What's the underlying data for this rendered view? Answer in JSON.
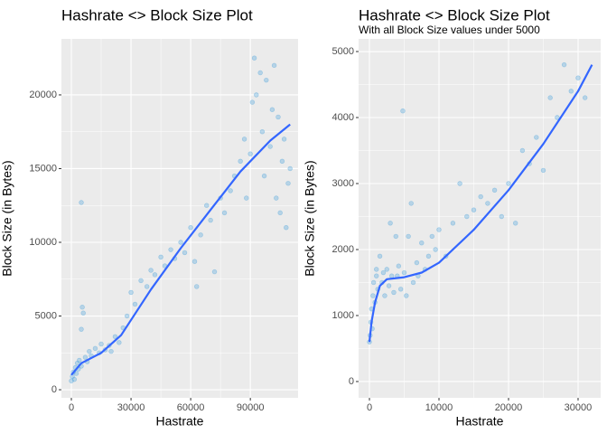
{
  "chart_data": [
    {
      "type": "scatter",
      "title": "Hashrate <> Block Size Plot",
      "x_label": "Hastrate",
      "y_label": "Block Size (in Bytes)",
      "xlim": [
        -5000,
        114000
      ],
      "ylim": [
        -550,
        23800
      ],
      "xticks": [
        0,
        30000,
        60000,
        90000
      ],
      "yticks": [
        0,
        5000,
        10000,
        15000,
        20000
      ],
      "grid": true,
      "color": "#3a9ad9",
      "points": [
        [
          0,
          600
        ],
        [
          500,
          900
        ],
        [
          1000,
          1200
        ],
        [
          1500,
          700
        ],
        [
          2000,
          1500
        ],
        [
          2500,
          1100
        ],
        [
          3000,
          1800
        ],
        [
          3500,
          1400
        ],
        [
          4000,
          2000
        ],
        [
          5000,
          1600
        ],
        [
          5000,
          12700
        ],
        [
          5500,
          5600
        ],
        [
          6000,
          5200
        ],
        [
          5000,
          4100
        ],
        [
          7000,
          2200
        ],
        [
          8000,
          1900
        ],
        [
          9000,
          2600
        ],
        [
          10000,
          2300
        ],
        [
          12000,
          2800
        ],
        [
          14000,
          2500
        ],
        [
          15000,
          3100
        ],
        [
          17000,
          2700
        ],
        [
          19000,
          3000
        ],
        [
          20000,
          2600
        ],
        [
          22000,
          3600
        ],
        [
          24000,
          3200
        ],
        [
          26000,
          4200
        ],
        [
          28000,
          5000
        ],
        [
          30000,
          6600
        ],
        [
          32000,
          5800
        ],
        [
          35000,
          7400
        ],
        [
          38000,
          7000
        ],
        [
          40000,
          8100
        ],
        [
          42000,
          7800
        ],
        [
          45000,
          9000
        ],
        [
          47000,
          8400
        ],
        [
          50000,
          9500
        ],
        [
          52000,
          8900
        ],
        [
          55000,
          10000
        ],
        [
          57000,
          9300
        ],
        [
          60000,
          11000
        ],
        [
          62000,
          8700
        ],
        [
          63000,
          7000
        ],
        [
          65000,
          10500
        ],
        [
          68000,
          12500
        ],
        [
          70000,
          11500
        ],
        [
          72000,
          8000
        ],
        [
          75000,
          13000
        ],
        [
          77000,
          12000
        ],
        [
          80000,
          13500
        ],
        [
          82000,
          14500
        ],
        [
          85000,
          15500
        ],
        [
          87000,
          17000
        ],
        [
          88000,
          13000
        ],
        [
          90000,
          16000
        ],
        [
          91000,
          19500
        ],
        [
          92000,
          22500
        ],
        [
          93000,
          20000
        ],
        [
          95000,
          21500
        ],
        [
          96000,
          17500
        ],
        [
          97000,
          14500
        ],
        [
          98000,
          21000
        ],
        [
          100000,
          16500
        ],
        [
          101000,
          19000
        ],
        [
          102000,
          22000
        ],
        [
          103000,
          13000
        ],
        [
          104000,
          18500
        ],
        [
          105000,
          12000
        ],
        [
          106000,
          15500
        ],
        [
          107000,
          17000
        ],
        [
          108000,
          11000
        ],
        [
          109000,
          14000
        ],
        [
          110000,
          15000
        ]
      ],
      "fit": {
        "color": "#3366ff",
        "x": [
          0,
          5000,
          15000,
          25000,
          40000,
          55000,
          70000,
          85000,
          100000,
          110000
        ],
        "y": [
          1000,
          1800,
          2500,
          3700,
          6800,
          9600,
          12200,
          14800,
          16900,
          18000
        ]
      }
    },
    {
      "type": "scatter",
      "title": "Hashrate <> Block Size Plot",
      "subtitle": "With all Block Size values under 5000",
      "x_label": "Hastrate",
      "y_label": "Block Size (in Bytes)",
      "xlim": [
        -1560,
        33250
      ],
      "ylim": [
        -247,
        5192
      ],
      "xticks": [
        0,
        10000,
        20000,
        30000
      ],
      "yticks": [
        0,
        1000,
        2000,
        3000,
        4000,
        5000
      ],
      "grid": true,
      "color": "#3a9ad9",
      "points": [
        [
          0,
          600
        ],
        [
          100,
          700
        ],
        [
          200,
          900
        ],
        [
          300,
          1100
        ],
        [
          400,
          800
        ],
        [
          500,
          1300
        ],
        [
          600,
          1500
        ],
        [
          800,
          1200
        ],
        [
          1000,
          1700
        ],
        [
          1000,
          1600
        ],
        [
          1200,
          1400
        ],
        [
          1500,
          1900
        ],
        [
          1800,
          1500
        ],
        [
          2000,
          1650
        ],
        [
          2200,
          1300
        ],
        [
          2500,
          1700
        ],
        [
          2800,
          1450
        ],
        [
          3000,
          2400
        ],
        [
          3200,
          1600
        ],
        [
          3500,
          1350
        ],
        [
          3800,
          2200
        ],
        [
          4000,
          1600
        ],
        [
          4200,
          1750
        ],
        [
          4500,
          1400
        ],
        [
          4800,
          4100
        ],
        [
          5000,
          1650
        ],
        [
          5300,
          1300
        ],
        [
          5600,
          2200
        ],
        [
          6000,
          2700
        ],
        [
          6300,
          1500
        ],
        [
          6800,
          1800
        ],
        [
          7000,
          1600
        ],
        [
          7500,
          2100
        ],
        [
          8000,
          1700
        ],
        [
          8500,
          1900
        ],
        [
          9000,
          2200
        ],
        [
          9500,
          2000
        ],
        [
          10000,
          2300
        ],
        [
          11000,
          1900
        ],
        [
          12000,
          2400
        ],
        [
          13000,
          3000
        ],
        [
          14000,
          2500
        ],
        [
          15000,
          2600
        ],
        [
          16000,
          2800
        ],
        [
          17000,
          2700
        ],
        [
          18000,
          2900
        ],
        [
          19000,
          2500
        ],
        [
          20000,
          3000
        ],
        [
          21000,
          2400
        ],
        [
          22000,
          3500
        ],
        [
          23000,
          3300
        ],
        [
          24000,
          3700
        ],
        [
          25000,
          3200
        ],
        [
          26000,
          4300
        ],
        [
          27000,
          4000
        ],
        [
          28000,
          4800
        ],
        [
          29000,
          4400
        ],
        [
          30000,
          4600
        ],
        [
          31000,
          4300
        ]
      ],
      "fit": {
        "color": "#3366ff",
        "x": [
          0,
          300,
          800,
          1500,
          2500,
          5000,
          7500,
          10000,
          15000,
          20000,
          25000,
          30000,
          32000
        ],
        "y": [
          600,
          900,
          1200,
          1450,
          1550,
          1580,
          1650,
          1800,
          2300,
          2900,
          3600,
          4400,
          4800
        ]
      }
    }
  ]
}
